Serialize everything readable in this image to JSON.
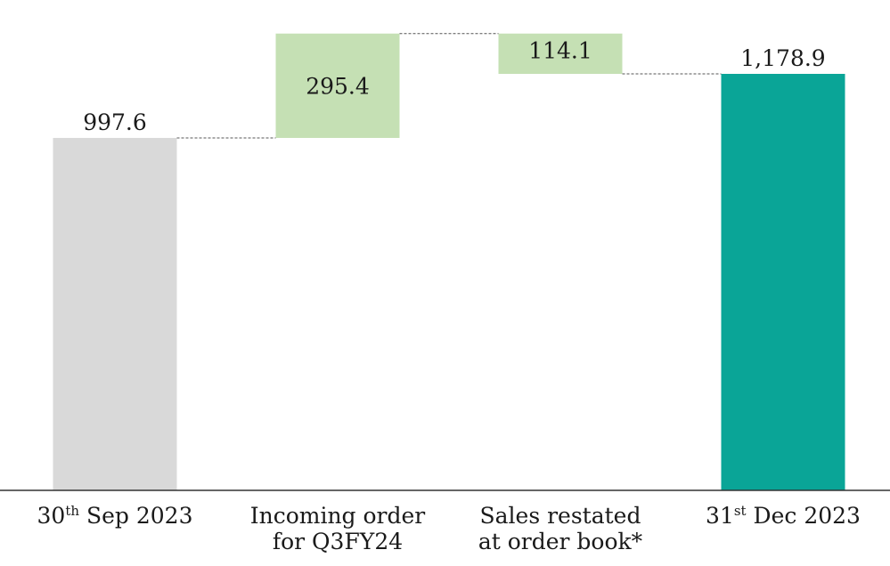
{
  "chart_data": {
    "type": "waterfall",
    "title": "",
    "xlabel": "",
    "ylabel": "",
    "ylim": [
      0,
      1388
    ],
    "gridlines": false,
    "legend": "none",
    "steps": [
      {
        "kind": "total",
        "value": 997.6,
        "value_label": "997.6",
        "color": "#d9d9d9",
        "label_parts": {
          "pre": "30",
          "sup": "th",
          "post": " Sep 2023"
        }
      },
      {
        "kind": "increase",
        "value": 295.4,
        "value_label": "295.4",
        "color": "#c5e0b4",
        "label_lines": [
          "Incoming order",
          "for Q3FY24"
        ]
      },
      {
        "kind": "decrease",
        "value": -114.1,
        "value_label": "114.1",
        "color": "#c5e0b4",
        "label_lines": [
          "Sales restated",
          "at order book*"
        ]
      },
      {
        "kind": "total",
        "value": 1178.9,
        "value_label": "1,178.9",
        "color": "#0aa597",
        "label_parts": {
          "pre": "31",
          "sup": "st",
          "post": " Dec 2023"
        }
      }
    ]
  }
}
